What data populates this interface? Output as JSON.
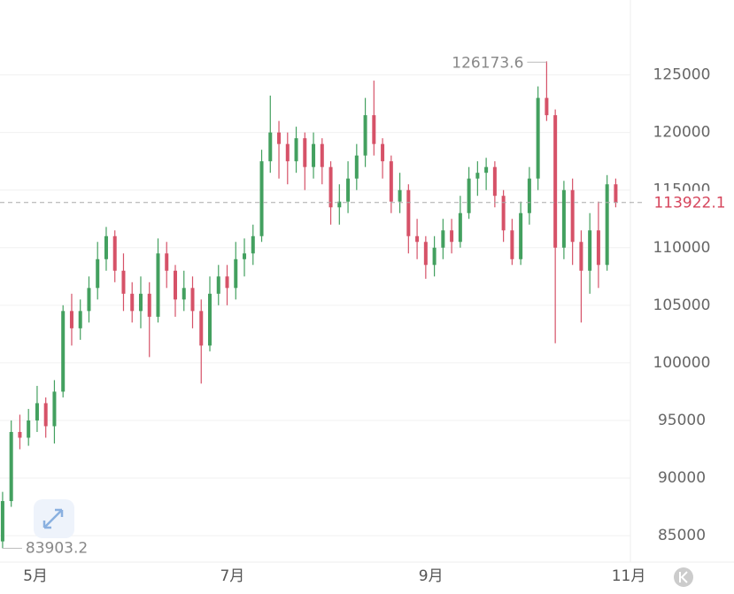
{
  "chart_data": {
    "type": "candlestick",
    "up_color": "#43a05f",
    "down_color": "#d65268",
    "open": [
      84500,
      88000,
      94000,
      93500,
      95000,
      96500,
      94500,
      97500,
      104500,
      103000,
      104500,
      106500,
      109000,
      111000,
      108000,
      106000,
      104500,
      106000,
      104000,
      109500,
      108000,
      105500,
      106500,
      104500,
      101500,
      106000,
      107500,
      106500,
      109000,
      109500,
      111000,
      117500,
      120000,
      119000,
      117500,
      119500,
      117000,
      119000,
      117000,
      113500,
      114000,
      116000,
      118000,
      121500,
      119000,
      117500,
      114000,
      115000,
      111000,
      110500,
      108500,
      110000,
      111500,
      110500,
      113000,
      116000,
      116500,
      117000,
      114500,
      111500,
      109000,
      113000,
      116000,
      123000,
      121500,
      110000,
      115000,
      110500,
      108000,
      111500,
      108500,
      115500
    ],
    "high": [
      88800,
      95000,
      95500,
      96000,
      98000,
      97000,
      98500,
      105000,
      106000,
      105500,
      107500,
      110500,
      111800,
      111500,
      109500,
      107000,
      107500,
      107000,
      110800,
      110500,
      108500,
      108000,
      107500,
      105500,
      107500,
      108500,
      108500,
      110500,
      110800,
      112000,
      118500,
      123200,
      121000,
      120000,
      120500,
      120000,
      120000,
      119500,
      117500,
      115500,
      117500,
      119000,
      123000,
      124500,
      119500,
      118000,
      116500,
      115500,
      112500,
      111000,
      111000,
      112500,
      112500,
      114500,
      117000,
      117500,
      117800,
      117500,
      115000,
      112500,
      114000,
      117000,
      124000,
      126173.6,
      122000,
      115800,
      116000,
      111500,
      113000,
      114000,
      116300,
      116000
    ],
    "low": [
      83903.2,
      87500,
      92500,
      92800,
      94000,
      93500,
      93000,
      97000,
      101500,
      102000,
      103500,
      105500,
      108000,
      107000,
      104500,
      103500,
      103000,
      100500,
      103500,
      106500,
      104000,
      104500,
      103000,
      98200,
      101000,
      105000,
      105000,
      105500,
      107500,
      108500,
      110500,
      116500,
      116000,
      115500,
      116500,
      115000,
      116000,
      115500,
      112000,
      112000,
      113000,
      115000,
      117000,
      118000,
      116000,
      113000,
      113000,
      109500,
      109000,
      107300,
      107500,
      109000,
      109500,
      110000,
      112500,
      114500,
      115000,
      113500,
      110500,
      108500,
      108500,
      112000,
      115000,
      121000,
      101700,
      109000,
      108500,
      103500,
      106000,
      106500,
      108000,
      113500
    ],
    "close": [
      88000,
      94000,
      93500,
      95000,
      96500,
      94500,
      97500,
      104500,
      103000,
      104500,
      106500,
      109000,
      111000,
      108000,
      106000,
      104500,
      106000,
      104000,
      109500,
      108000,
      105500,
      106500,
      104500,
      101500,
      106000,
      107500,
      106500,
      109000,
      109500,
      111000,
      117500,
      120000,
      119000,
      117500,
      119500,
      117000,
      119000,
      117000,
      113500,
      114000,
      116000,
      118000,
      121500,
      119000,
      117500,
      114000,
      115000,
      111000,
      110500,
      108500,
      110000,
      111500,
      110500,
      113000,
      116000,
      116500,
      117000,
      114500,
      111500,
      109000,
      113000,
      116000,
      123000,
      121500,
      110000,
      115000,
      110500,
      108000,
      111500,
      108500,
      115500,
      113922.1
    ],
    "xlim": [
      -0.3,
      72.7
    ],
    "xticks": [
      {
        "value": 3.8,
        "label": "5月"
      },
      {
        "value": 26.6,
        "label": "7月"
      },
      {
        "value": 49.6,
        "label": "9月"
      },
      {
        "value": 72.5,
        "label": "11月"
      }
    ],
    "ylim": [
      82700,
      131500
    ],
    "yticks": [
      85000,
      90000,
      95000,
      100000,
      105000,
      110000,
      115000,
      120000,
      125000
    ],
    "grid": true,
    "last_price_line": true
  }
}
